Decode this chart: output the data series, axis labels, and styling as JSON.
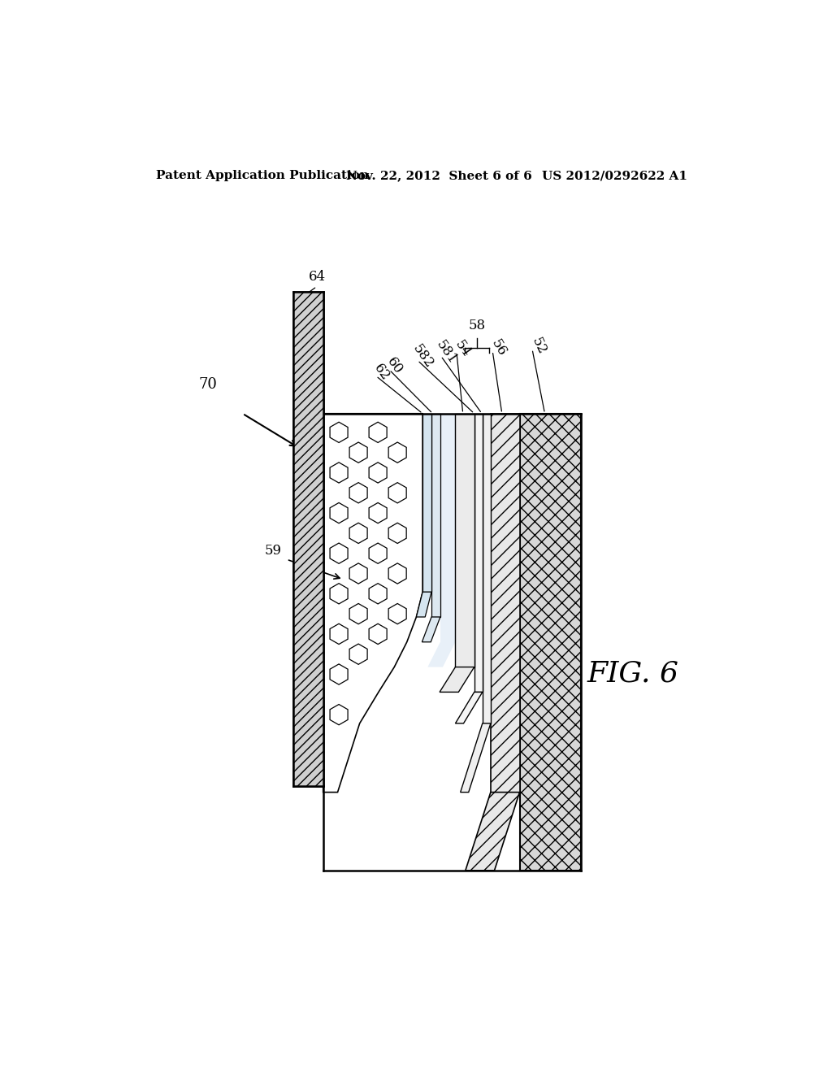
{
  "bg_color": "#ffffff",
  "header_left": "Patent Application Publication",
  "header_mid": "Nov. 22, 2012  Sheet 6 of 6",
  "header_right": "US 2012/0292622 A1",
  "fig_label": "FIG. 6",
  "ref_70": "70",
  "ref_64": "64",
  "ref_62": "62",
  "ref_60": "60",
  "ref_582": "582",
  "ref_581": "581",
  "ref_54": "54",
  "ref_58": "58",
  "ref_56": "56",
  "ref_52": "52",
  "ref_59": "59",
  "line_color": "#000000",
  "hatch_color": "#000000"
}
